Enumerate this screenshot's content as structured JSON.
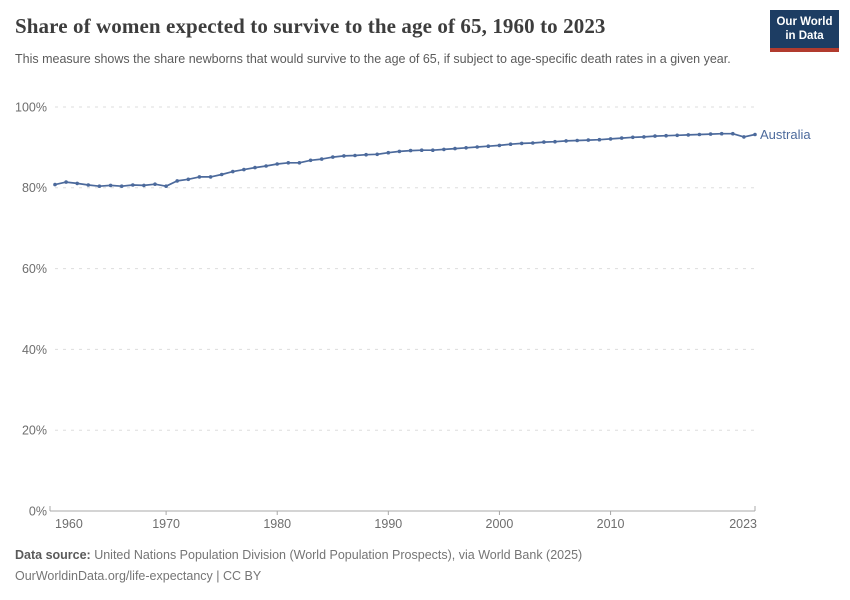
{
  "header": {
    "title": "Share of women expected to survive to the age of 65, 1960 to 2023",
    "subtitle": "This measure shows the share newborns that would survive to the age of 65, if subject to age-specific death rates in a given year.",
    "logo": {
      "line1": "Our World",
      "line2": "in Data",
      "bg_color": "#1d3d63",
      "accent_color": "#b13b2e"
    }
  },
  "chart_data": {
    "type": "line",
    "title": "Share of women expected to survive to the age of 65, 1960 to 2023",
    "xlabel": "",
    "ylabel": "",
    "xlim": [
      1960,
      2023
    ],
    "ylim": [
      0,
      100
    ],
    "grid": "horizontal dashed",
    "legend_position": "end-of-line label",
    "x_ticks": [
      1960,
      1970,
      1980,
      1990,
      2000,
      2010,
      2023
    ],
    "y_ticks": [
      {
        "value": 0,
        "label": "0%"
      },
      {
        "value": 20,
        "label": "20%"
      },
      {
        "value": 40,
        "label": "40%"
      },
      {
        "value": 60,
        "label": "60%"
      },
      {
        "value": 80,
        "label": "80%"
      },
      {
        "value": 100,
        "label": "100%"
      }
    ],
    "series": [
      {
        "name": "Australia",
        "color": "#4c6a9c",
        "years": [
          1960,
          1961,
          1962,
          1963,
          1964,
          1965,
          1966,
          1967,
          1968,
          1969,
          1970,
          1971,
          1972,
          1973,
          1974,
          1975,
          1976,
          1977,
          1978,
          1979,
          1980,
          1981,
          1982,
          1983,
          1984,
          1985,
          1986,
          1987,
          1988,
          1989,
          1990,
          1991,
          1992,
          1993,
          1994,
          1995,
          1996,
          1997,
          1998,
          1999,
          2000,
          2001,
          2002,
          2003,
          2004,
          2005,
          2006,
          2007,
          2008,
          2009,
          2010,
          2011,
          2012,
          2013,
          2014,
          2015,
          2016,
          2017,
          2018,
          2019,
          2020,
          2021,
          2022,
          2023
        ],
        "values": [
          80.8,
          81.4,
          81.1,
          80.7,
          80.4,
          80.6,
          80.4,
          80.7,
          80.6,
          80.9,
          80.4,
          81.7,
          82.1,
          82.7,
          82.7,
          83.3,
          84.0,
          84.5,
          85.0,
          85.4,
          85.9,
          86.2,
          86.2,
          86.8,
          87.1,
          87.6,
          87.9,
          88.0,
          88.2,
          88.3,
          88.7,
          89.0,
          89.2,
          89.3,
          89.3,
          89.5,
          89.7,
          89.9,
          90.1,
          90.3,
          90.5,
          90.8,
          91.0,
          91.1,
          91.3,
          91.4,
          91.6,
          91.7,
          91.8,
          91.9,
          92.1,
          92.3,
          92.5,
          92.6,
          92.8,
          92.9,
          93.0,
          93.1,
          93.2,
          93.3,
          93.4,
          93.4,
          92.6,
          93.2
        ]
      }
    ],
    "colors": {
      "gridline": "#dddddd",
      "axis_line": "#a8a8a8",
      "tick_label": "#6e6e6e"
    }
  },
  "footer": {
    "source_label": "Data source:",
    "source_text": " United Nations Population Division (World Population Prospects), via World Bank (2025)",
    "note": "OurWorldinData.org/life-expectancy | CC BY"
  }
}
